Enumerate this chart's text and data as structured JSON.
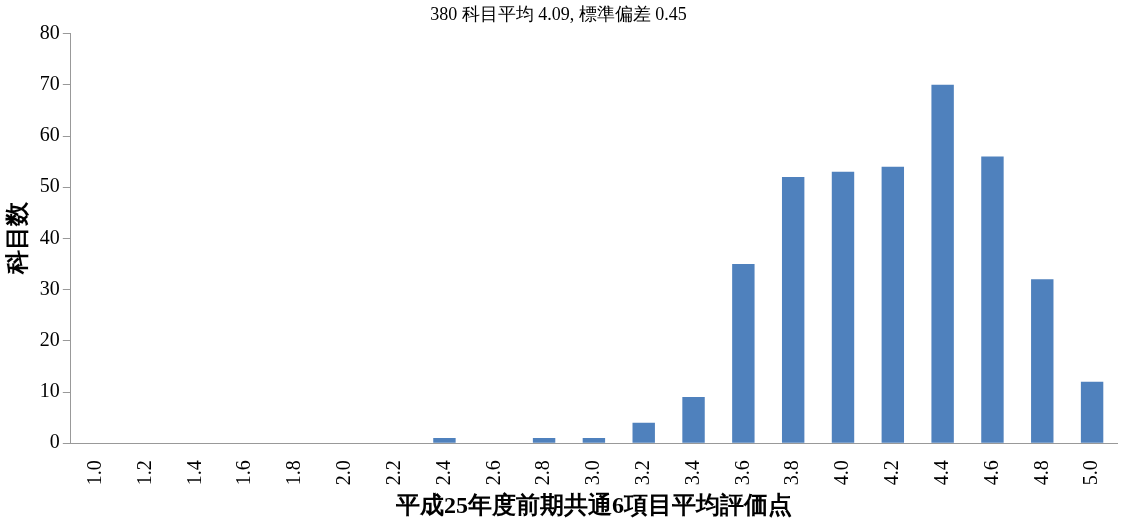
{
  "chart_data": {
    "type": "bar",
    "annotations": [
      "380 科目平均 4.09, 標準偏差 0.45"
    ],
    "xlabel": "平成25年度前期共通6項目平均評価点",
    "ylabel": "科目数",
    "categories": [
      "1.0",
      "1.2",
      "1.4",
      "1.6",
      "1.8",
      "2.0",
      "2.2",
      "2.4",
      "2.6",
      "2.8",
      "3.0",
      "3.2",
      "3.4",
      "3.6",
      "3.8",
      "4.0",
      "4.2",
      "4.4",
      "4.6",
      "4.8",
      "5.0"
    ],
    "values": [
      0,
      0,
      0,
      0,
      0,
      0,
      0,
      1,
      0,
      1,
      1,
      4,
      9,
      35,
      52,
      53,
      54,
      70,
      56,
      32,
      12
    ],
    "color": "#4f81bd",
    "ylim": [
      0,
      80
    ],
    "yticks": [
      0,
      10,
      20,
      30,
      40,
      50,
      60,
      70,
      80
    ],
    "grid": false,
    "legend": false
  }
}
